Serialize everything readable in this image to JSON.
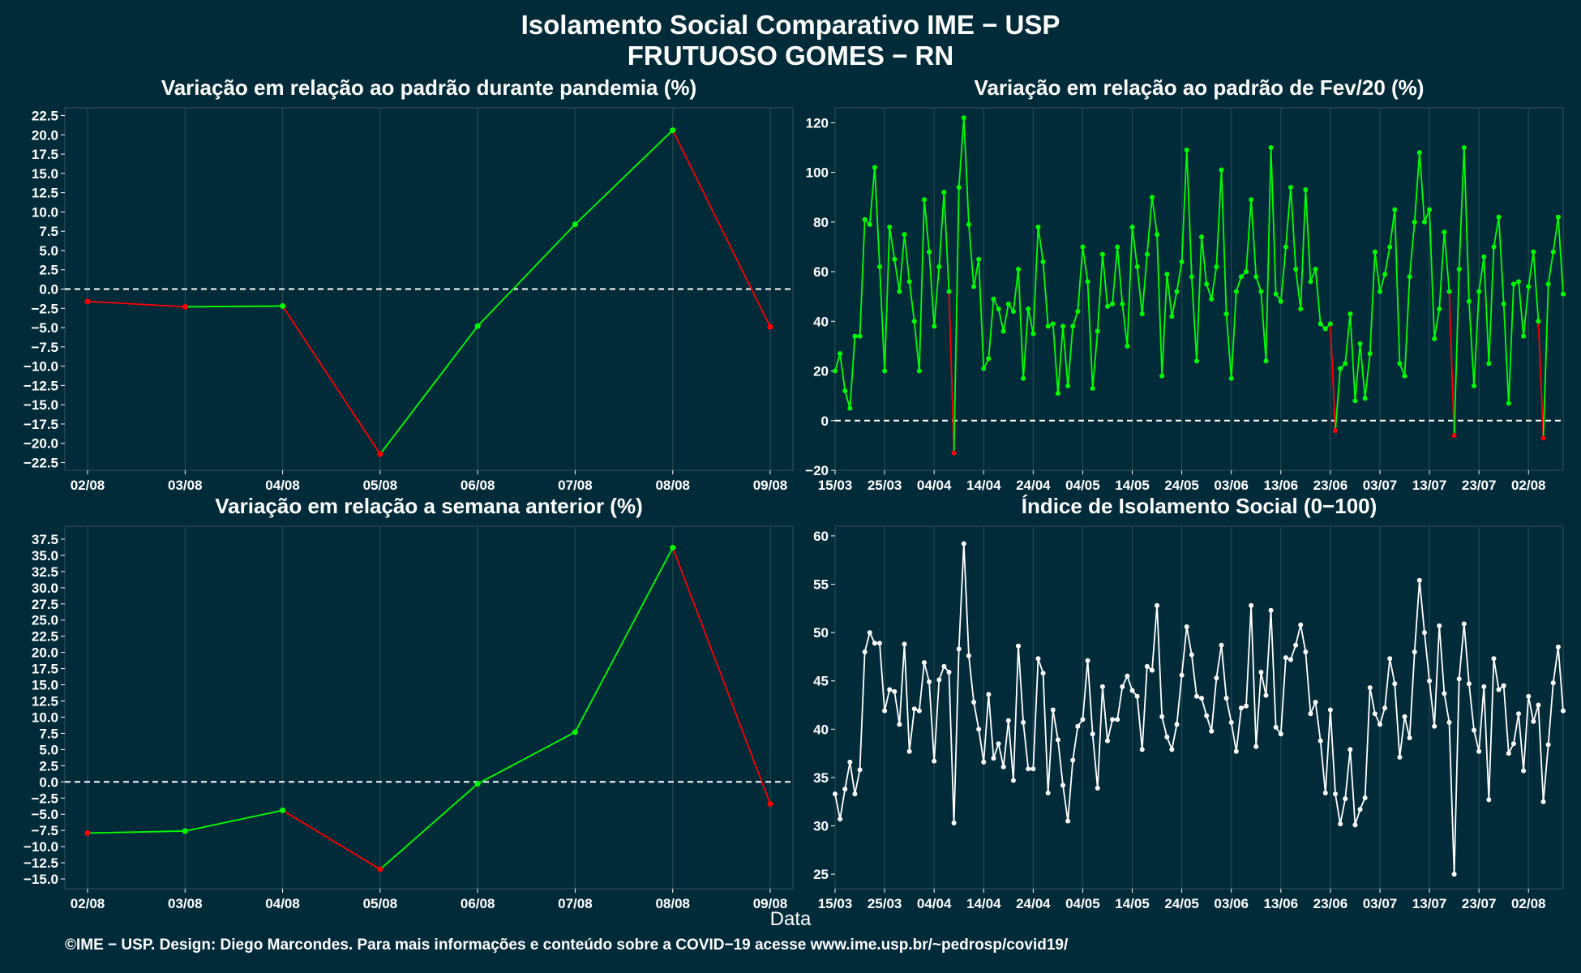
{
  "title": {
    "line1": "Isolamento Social Comparativo IME − USP",
    "line2": "FRUTUOSO GOMES − RN"
  },
  "xlabel": "Data",
  "footer": "©IME − USP. Design: Diego Marcondes. Para mais informações e conteúdo sobre a COVID−19 acesse www.ime.usp.br/~pedrosp/covid19/",
  "colors": {
    "background": "#022b3a",
    "panel": "#022b3a",
    "up": "#00ff00",
    "down": "#ff0000",
    "index_line": "#ffffff",
    "grid": "#24474f",
    "zero_line": "#ffffff"
  },
  "chart_data": [
    {
      "id": "pandemia",
      "type": "line",
      "title": "Variação em relação ao padrão durante pandemia (%)",
      "categories": [
        "02/08",
        "03/08",
        "04/08",
        "05/08",
        "06/08",
        "07/08",
        "08/08",
        "09/08"
      ],
      "values": [
        -1.6,
        -2.3,
        -2.2,
        -21.4,
        -4.8,
        8.4,
        20.6,
        -4.9
      ],
      "ylim": [
        -23.5,
        23.5
      ],
      "yticks": [
        "22.5",
        "20.0",
        "17.5",
        "15.0",
        "12.5",
        "10.0",
        "7.5",
        "5.0",
        "2.5",
        "0.0",
        "−2.5",
        "−5.0",
        "−7.5",
        "−10.0",
        "−12.5",
        "−15.0",
        "−17.5",
        "−20.0",
        "−22.5"
      ],
      "ytick_values": [
        22.5,
        20,
        17.5,
        15,
        12.5,
        10,
        7.5,
        5,
        2.5,
        0,
        -2.5,
        -5,
        -7.5,
        -10,
        -12.5,
        -15,
        -17.5,
        -20,
        -22.5
      ],
      "zero_line": true,
      "coloring": "up-green-down-red"
    },
    {
      "id": "fev20",
      "type": "line",
      "title": "Variação em relação ao padrão de Fev/20 (%)",
      "x_start": "15/03",
      "xticks": [
        "15/03",
        "25/03",
        "04/04",
        "14/04",
        "24/04",
        "04/05",
        "14/05",
        "24/05",
        "03/06",
        "13/06",
        "23/06",
        "03/07",
        "13/07",
        "23/07",
        "02/08"
      ],
      "xtick_index": [
        0,
        10,
        20,
        30,
        40,
        50,
        60,
        70,
        80,
        90,
        100,
        110,
        120,
        130,
        140
      ],
      "values": [
        20,
        27,
        12,
        5,
        34,
        34,
        81,
        79,
        102,
        62,
        20,
        78,
        65,
        52,
        75,
        56,
        40,
        20,
        89,
        68,
        38,
        62,
        92,
        52,
        -13,
        94,
        122,
        79,
        54,
        65,
        21,
        25,
        49,
        45,
        36,
        47,
        44,
        61,
        17,
        45,
        35,
        78,
        64,
        38,
        39,
        11,
        38,
        14,
        38,
        44,
        70,
        56,
        13,
        36,
        67,
        46,
        47,
        70,
        47,
        30,
        78,
        62,
        43,
        67,
        90,
        75,
        18,
        59,
        42,
        52,
        64,
        109,
        58,
        24,
        74,
        55,
        49,
        62,
        101,
        43,
        17,
        52,
        58,
        60,
        89,
        58,
        52,
        24,
        110,
        51,
        48,
        70,
        94,
        61,
        45,
        93,
        56,
        61,
        39,
        37,
        39,
        -4,
        21,
        23,
        43,
        8,
        31,
        9,
        27,
        68,
        52,
        59,
        70,
        85,
        23,
        18,
        58,
        80,
        108,
        80,
        85,
        33,
        45,
        76,
        52,
        -6,
        61,
        110,
        48,
        14,
        52,
        66,
        23,
        70,
        82,
        47,
        7,
        55,
        56,
        34,
        54,
        68,
        40,
        -7,
        55,
        68,
        82,
        51
      ],
      "ylim": [
        -20,
        126
      ],
      "yticks": [
        "120",
        "100",
        "80",
        "60",
        "40",
        "20",
        "0",
        "−20"
      ],
      "ytick_values": [
        120,
        100,
        80,
        60,
        40,
        20,
        0,
        -20
      ],
      "zero_line": true,
      "coloring": "positive-green-negative-red"
    },
    {
      "id": "semana",
      "type": "line",
      "title": "Variação em relação a semana anterior (%)",
      "categories": [
        "02/08",
        "03/08",
        "04/08",
        "05/08",
        "06/08",
        "07/08",
        "08/08",
        "09/08"
      ],
      "values": [
        -7.9,
        -7.6,
        -4.4,
        -13.5,
        -0.3,
        7.7,
        36.2,
        -3.4
      ],
      "ylim": [
        -16.5,
        39.5
      ],
      "yticks": [
        "37.5",
        "35.0",
        "32.5",
        "30.0",
        "27.5",
        "25.0",
        "22.5",
        "20.0",
        "17.5",
        "15.0",
        "12.5",
        "10.0",
        "7.5",
        "5.0",
        "2.5",
        "0.0",
        "−2.5",
        "−5.0",
        "−7.5",
        "−10.0",
        "−12.5",
        "−15.0"
      ],
      "ytick_values": [
        37.5,
        35,
        32.5,
        30,
        27.5,
        25,
        22.5,
        20,
        17.5,
        15,
        12.5,
        10,
        7.5,
        5,
        2.5,
        0,
        -2.5,
        -5,
        -7.5,
        -10,
        -12.5,
        -15
      ],
      "zero_line": true,
      "coloring": "up-green-down-red"
    },
    {
      "id": "indice",
      "type": "line",
      "title": "Índice de Isolamento Social (0−100)",
      "x_start": "15/03",
      "xticks": [
        "15/03",
        "25/03",
        "04/04",
        "14/04",
        "24/04",
        "04/05",
        "14/05",
        "24/05",
        "03/06",
        "13/06",
        "23/06",
        "03/07",
        "13/07",
        "23/07",
        "02/08"
      ],
      "xtick_index": [
        0,
        10,
        20,
        30,
        40,
        50,
        60,
        70,
        80,
        90,
        100,
        110,
        120,
        130,
        140
      ],
      "values": [
        33.3,
        30.7,
        33.8,
        36.6,
        33.3,
        35.8,
        48.0,
        50.0,
        48.9,
        48.9,
        41.9,
        44.1,
        43.9,
        40.5,
        48.8,
        37.7,
        42.1,
        41.9,
        46.9,
        44.9,
        36.7,
        45.1,
        46.5,
        45.9,
        30.3,
        48.3,
        59.2,
        47.6,
        42.8,
        40.0,
        36.6,
        43.6,
        37.0,
        38.5,
        36.1,
        40.9,
        34.7,
        48.6,
        40.7,
        35.9,
        35.9,
        47.3,
        45.8,
        33.4,
        42.0,
        38.9,
        34.2,
        30.5,
        36.8,
        40.3,
        41.0,
        47.1,
        39.5,
        33.9,
        44.4,
        38.8,
        41.0,
        41.0,
        44.4,
        45.5,
        44.0,
        43.4,
        37.9,
        46.5,
        46.1,
        52.8,
        41.3,
        39.2,
        37.9,
        40.5,
        45.6,
        50.6,
        47.7,
        43.4,
        43.2,
        41.4,
        39.8,
        45.3,
        48.7,
        43.2,
        40.7,
        37.7,
        42.2,
        42.4,
        52.8,
        38.2,
        45.9,
        43.5,
        52.3,
        40.2,
        39.5,
        47.4,
        47.2,
        48.7,
        50.8,
        48.0,
        41.6,
        42.8,
        38.8,
        33.4,
        42.0,
        33.3,
        30.2,
        32.8,
        37.9,
        30.1,
        31.7,
        32.9,
        44.3,
        41.6,
        40.5,
        42.2,
        47.3,
        44.7,
        37.1,
        41.3,
        39.1,
        48.0,
        55.4,
        50.0,
        45.0,
        40.3,
        50.7,
        43.7,
        40.7,
        25.0,
        45.2,
        50.9,
        44.7,
        39.9,
        37.7,
        44.4,
        32.7,
        47.3,
        44.1,
        44.5,
        37.5,
        38.5,
        41.6,
        35.7,
        43.4,
        40.8,
        42.5,
        32.5,
        38.4,
        44.8,
        48.5,
        41.9
      ],
      "ylim": [
        23.5,
        61
      ],
      "yticks": [
        "60",
        "55",
        "50",
        "45",
        "40",
        "35",
        "30",
        "25"
      ],
      "ytick_values": [
        60,
        55,
        50,
        45,
        40,
        35,
        30,
        25
      ],
      "zero_line": false,
      "coloring": "single-white"
    }
  ]
}
